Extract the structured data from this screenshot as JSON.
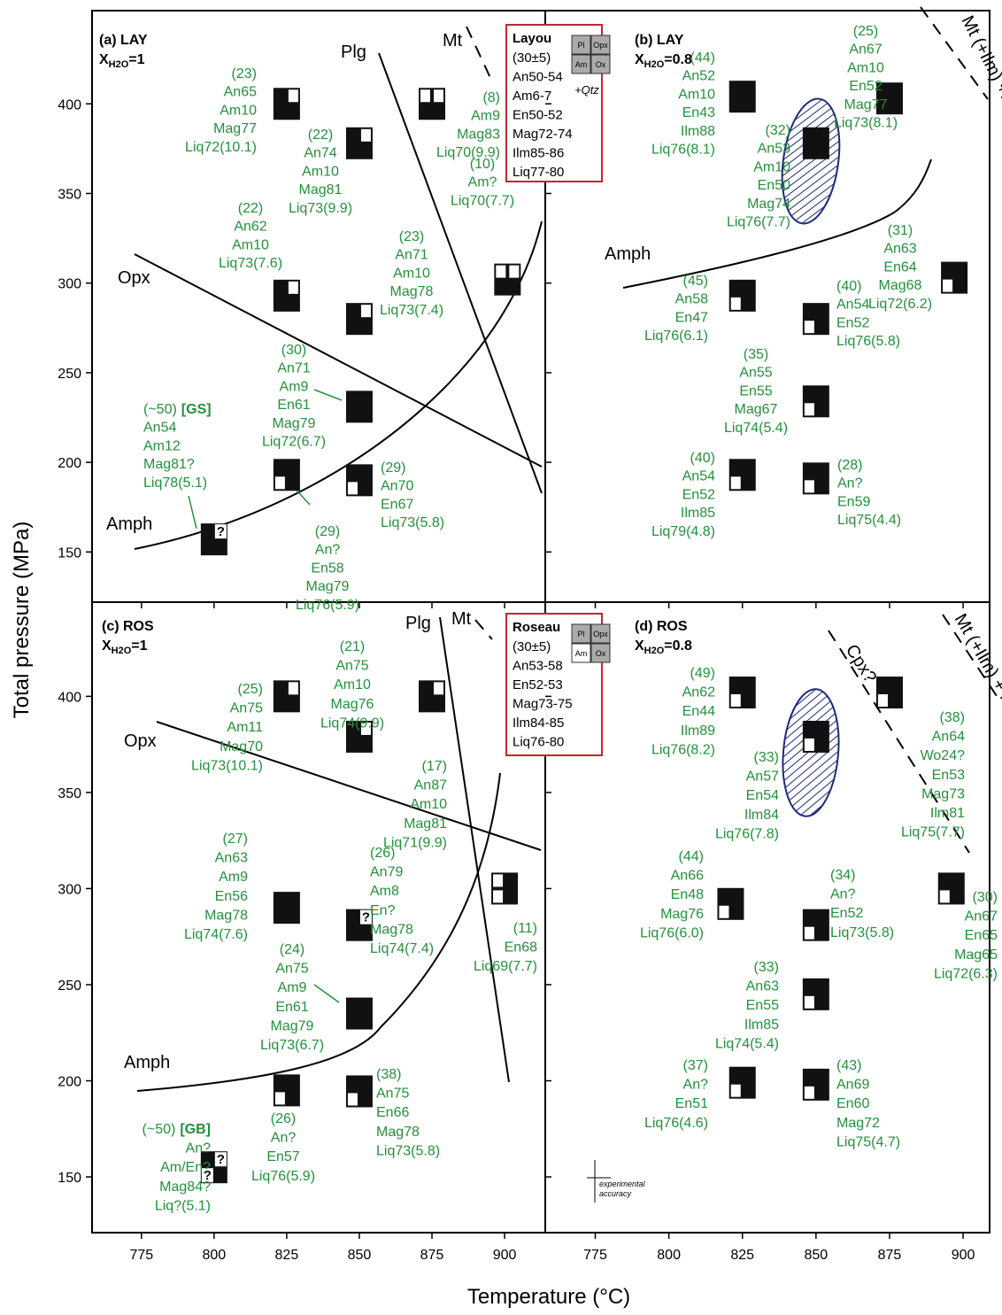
{
  "axis_labels": {
    "x": "Temperature (°C)",
    "y": "Total pressure (MPa)"
  },
  "unknown_mark": "?",
  "chart_data": [
    {
      "type": "scatter",
      "title": "(a) LAY",
      "condition": {
        "symbol": "X",
        "sub": "H2O",
        "value": "=1"
      },
      "xlim": [
        758,
        914
      ],
      "ylim": [
        122,
        452
      ],
      "xticks": [
        775,
        800,
        825,
        850,
        875,
        900
      ],
      "yticks": [
        150,
        200,
        250,
        300,
        350,
        400
      ],
      "label_color": "#23913b",
      "marker_color": "#111111",
      "boundary_labels": [
        "Opx",
        "Plg",
        "Mt",
        "Amph"
      ],
      "points": [
        {
          "x": 825,
          "y": 400,
          "absent": [
            "Opx"
          ],
          "label": [
            "(23)",
            "An65",
            "Am10",
            "Mag77",
            "Liq72(10.1)"
          ]
        },
        {
          "x": 850,
          "y": 378,
          "absent": [
            "Opx"
          ],
          "label": [
            "(22)",
            "An74",
            "Am10",
            "Mag81",
            "Liq73(9.9)"
          ]
        },
        {
          "x": 875,
          "y": 400,
          "absent": [
            "Pl",
            "Opx"
          ],
          "label": [
            "(8)",
            "Am9",
            "Mag83",
            "Liq70(9.9)"
          ]
        },
        {
          "x": 825,
          "y": 293,
          "absent": [
            "Opx"
          ],
          "label": [
            "(22)",
            "An62",
            "Am10",
            "Liq73(7.6)"
          ]
        },
        {
          "x": 850,
          "y": 280,
          "absent": [
            "Opx"
          ],
          "label": [
            "(23)",
            "An71",
            "Am10",
            "Mag78",
            "Liq73(7.4)"
          ]
        },
        {
          "x": 901,
          "y": 302,
          "absent": [
            "Pl",
            "Opx"
          ],
          "label": [
            "(10)",
            "Am?",
            "Liq70(7.7)"
          ]
        },
        {
          "x": 850,
          "y": 231,
          "label": [
            "(30)",
            "An71",
            "Am9",
            "En61",
            "Mag79",
            "Liq72(6.7)"
          ]
        },
        {
          "x": 825,
          "y": 193,
          "absent": [
            "Am"
          ],
          "label": [
            "(29)",
            "An?",
            "En58",
            "Mag79",
            "Liq76(5.9)"
          ]
        },
        {
          "x": 850,
          "y": 190,
          "absent": [
            "Am"
          ],
          "label": [
            "(29)",
            "An70",
            "En67",
            "Liq73(5.8)"
          ]
        },
        {
          "x": 800,
          "y": 157,
          "unknown": [
            "Opx"
          ],
          "tag": "[GS]",
          "label": [
            "(~50)",
            "An54",
            "Am12",
            "Mag81?",
            "Liq78(5.1)"
          ]
        }
      ],
      "inset": {
        "title": "Layou",
        "lines": [
          "(30±5)",
          "An50-54",
          "Am6-7",
          "En50-52",
          "Mag72-74",
          "Ilm85-86",
          "Liq77-80"
        ],
        "cells": [
          "Pl",
          "Opx",
          "Am",
          "Ox"
        ],
        "note": "+Qtz",
        "border_color": "#c1272d"
      }
    },
    {
      "type": "scatter",
      "title": "(b) LAY",
      "condition": {
        "symbol": "X",
        "sub": "H2O",
        "value": "=0.8"
      },
      "xlim": [
        758,
        909
      ],
      "ylim": [
        122,
        452
      ],
      "xticks": [
        775,
        800,
        825,
        850,
        875,
        900
      ],
      "yticks": [
        150,
        200,
        250,
        300,
        350,
        400
      ],
      "label_color": "#23913b",
      "marker_color": "#111111",
      "boundary_labels": [
        "Amph",
        "Mt (+Ilm) +Plg+Opx"
      ],
      "points": [
        {
          "x": 825,
          "y": 404,
          "label": [
            "(44)",
            "An52",
            "Am10",
            "En43",
            "Ilm88",
            "Liq76(8.1)"
          ]
        },
        {
          "x": 850,
          "y": 378,
          "label": [
            "(32)",
            "An53",
            "Am10",
            "En50",
            "Mag74",
            "Liq76(7.7)"
          ]
        },
        {
          "x": 875,
          "y": 403,
          "label": [
            "(25)",
            "An67",
            "Am10",
            "En52",
            "Mag77",
            "Liq73(8.1)"
          ]
        },
        {
          "x": 825,
          "y": 293,
          "absent": [
            "Am"
          ],
          "label": [
            "(45)",
            "An58",
            "En47",
            "Liq76(6.1)"
          ]
        },
        {
          "x": 850,
          "y": 280,
          "absent": [
            "Am"
          ],
          "label": [
            "(40)",
            "An54",
            "En52",
            "Liq76(5.8)"
          ]
        },
        {
          "x": 897,
          "y": 303,
          "absent": [
            "Am"
          ],
          "label": [
            "(31)",
            "An63",
            "En64",
            "Mag68",
            "Liq72(6.2)"
          ]
        },
        {
          "x": 850,
          "y": 234,
          "absent": [
            "Am"
          ],
          "label": [
            "(35)",
            "An55",
            "En55",
            "Mag67",
            "Liq74(5.4)"
          ]
        },
        {
          "x": 825,
          "y": 193,
          "absent": [
            "Am"
          ],
          "label": [
            "(40)",
            "An54",
            "En52",
            "Ilm85",
            "Liq79(4.8)"
          ]
        },
        {
          "x": 850,
          "y": 191,
          "absent": [
            "Am"
          ],
          "label": [
            "(28)",
            "An?",
            "En59",
            "Liq75(4.4)"
          ]
        }
      ]
    },
    {
      "type": "scatter",
      "title": "(c) ROS",
      "condition": {
        "symbol": "X",
        "sub": "H2O",
        "value": "=1"
      },
      "xlim": [
        758,
        914
      ],
      "ylim": [
        121,
        449
      ],
      "xticks": [
        775,
        800,
        825,
        850,
        875,
        900
      ],
      "yticks": [
        150,
        200,
        250,
        300,
        350,
        400
      ],
      "label_color": "#23913b",
      "marker_color": "#111111",
      "boundary_labels": [
        "Opx",
        "Plg",
        "Mt",
        "Amph"
      ],
      "points": [
        {
          "x": 825,
          "y": 400,
          "absent": [
            "Opx"
          ],
          "label": [
            "(25)",
            "An75",
            "Am11",
            "Mag70",
            "Liq73(10.1)"
          ]
        },
        {
          "x": 850,
          "y": 379,
          "absent": [
            "Opx"
          ],
          "label": [
            "(21)",
            "An75",
            "Am10",
            "Mag76",
            "Liq74(9.9)"
          ]
        },
        {
          "x": 875,
          "y": 400,
          "absent": [
            "Opx"
          ],
          "label": [
            "(17)",
            "An87",
            "Am10",
            "Mag81",
            "Liq71(9.9)"
          ]
        },
        {
          "x": 825,
          "y": 290,
          "label": [
            "(27)",
            "An63",
            "Am9",
            "En56",
            "Mag78",
            "Liq74(7.6)"
          ]
        },
        {
          "x": 850,
          "y": 281,
          "unknown": [
            "Opx"
          ],
          "label": [
            "(26)",
            "An79",
            "Am8",
            "En?",
            "Mag78",
            "Liq74(7.4)"
          ]
        },
        {
          "x": 900,
          "y": 300,
          "absent": [
            "Pl",
            "Am"
          ],
          "label": [
            "(11)",
            "En68",
            "Liq69(7.7)"
          ]
        },
        {
          "x": 850,
          "y": 235,
          "label": [
            "(24)",
            "An75",
            "Am9",
            "En61",
            "Mag79",
            "Liq73(6.7)"
          ]
        },
        {
          "x": 825,
          "y": 195,
          "absent": [
            "Am"
          ],
          "label": [
            "(26)",
            "An?",
            "En57",
            "Liq76(5.9)"
          ]
        },
        {
          "x": 850,
          "y": 194.5,
          "absent": [
            "Am"
          ],
          "label": [
            "(38)",
            "An75",
            "En66",
            "Mag78",
            "Liq73(5.8)"
          ]
        },
        {
          "x": 800,
          "y": 155,
          "unknown": [
            "Opx",
            "Am"
          ],
          "tag": "[GB]",
          "label": [
            "(~50)",
            "An?",
            "Am/En?",
            "Mag84?",
            "Liq?(5.1)"
          ]
        }
      ],
      "inset": {
        "title": "Roseau",
        "lines": [
          "(30±5)",
          "An53-58",
          "En52-53",
          "Mag73-75",
          "Ilm84-85",
          "Liq76-80"
        ],
        "cells": [
          "Pl",
          "Opx",
          "Am",
          "Ox"
        ],
        "absent_cells": [
          "Am"
        ],
        "border_color": "#c1272d"
      }
    },
    {
      "type": "scatter",
      "title": "(d) ROS",
      "condition": {
        "symbol": "X",
        "sub": "H2O",
        "value": "=0.8"
      },
      "xlim": [
        758,
        909
      ],
      "ylim": [
        121,
        449
      ],
      "xticks": [
        775,
        800,
        825,
        850,
        875,
        900
      ],
      "yticks": [
        150,
        200,
        250,
        300,
        350,
        400
      ],
      "label_color": "#23913b",
      "marker_color": "#111111",
      "boundary_labels": [
        "Cpx?",
        "Mt (+Ilm) + Plg + Opx"
      ],
      "points": [
        {
          "x": 825,
          "y": 402,
          "absent": [
            "Am"
          ],
          "label": [
            "(49)",
            "An62",
            "En44",
            "Ilm89",
            "Liq76(8.2)"
          ]
        },
        {
          "x": 850,
          "y": 379,
          "absent": [
            "Am"
          ],
          "label": [
            "(33)",
            "An57",
            "En54",
            "Ilm84",
            "Liq76(7.8)"
          ]
        },
        {
          "x": 875,
          "y": 402,
          "absent": [
            "Am"
          ],
          "label": [
            "(38)",
            "An64",
            "Wo24?",
            "En53",
            "Mag73",
            "Ilm81",
            "Liq75(7.7)"
          ]
        },
        {
          "x": 821,
          "y": 292,
          "absent": [
            "Am"
          ],
          "label": [
            "(44)",
            "An66",
            "En48",
            "Mag76",
            "Liq76(6.0)"
          ]
        },
        {
          "x": 850,
          "y": 281,
          "absent": [
            "Am"
          ],
          "label": [
            "(34)",
            "An?",
            "En52",
            "Liq73(5.8)"
          ]
        },
        {
          "x": 896,
          "y": 300,
          "absent": [
            "Am"
          ],
          "label": [
            "(30)",
            "An67",
            "En65",
            "Mag65",
            "Liq72(6.3)"
          ]
        },
        {
          "x": 850,
          "y": 245,
          "absent": [
            "Am"
          ],
          "label": [
            "(33)",
            "An63",
            "En55",
            "Ilm85",
            "Liq74(5.4)"
          ]
        },
        {
          "x": 825,
          "y": 199,
          "absent": [
            "Am"
          ],
          "label": [
            "(37)",
            "An?",
            "En51",
            "Liq76(4.6)"
          ]
        },
        {
          "x": 850,
          "y": 198,
          "absent": [
            "Am"
          ],
          "label": [
            "(43)",
            "An69",
            "En60",
            "Mag72",
            "Liq75(4.7)"
          ]
        }
      ],
      "note": [
        "experimental",
        "accuracy"
      ]
    }
  ]
}
